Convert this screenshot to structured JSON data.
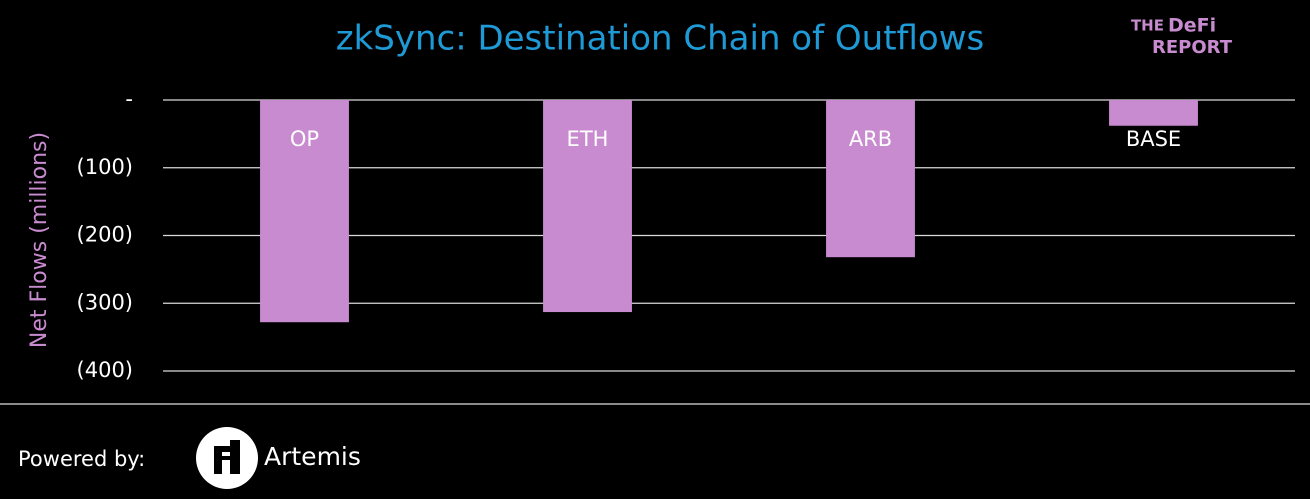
{
  "chart_data": {
    "type": "bar",
    "title": "zkSync: Destination Chain of Outflows",
    "y_label": "Net Flows (millions)",
    "categories": [
      "OP",
      "ETH",
      "ARB",
      "BASE"
    ],
    "values": [
      -328,
      -313,
      -232,
      -38
    ],
    "color": "#c98bd0",
    "ylim": [
      -400,
      0
    ],
    "yticks": [
      {
        "value": 0,
        "label": "-"
      },
      {
        "value": -100,
        "label": "(100)"
      },
      {
        "value": -200,
        "label": "(200)"
      },
      {
        "value": -300,
        "label": "(300)"
      },
      {
        "value": -400,
        "label": "(400)"
      }
    ],
    "grid": true
  },
  "logo": {
    "line1a": "THE",
    "line1b": "DeFi",
    "line2": "REPORT"
  },
  "footer": {
    "powered_by": "Powered by:",
    "brand": "Artemis"
  }
}
